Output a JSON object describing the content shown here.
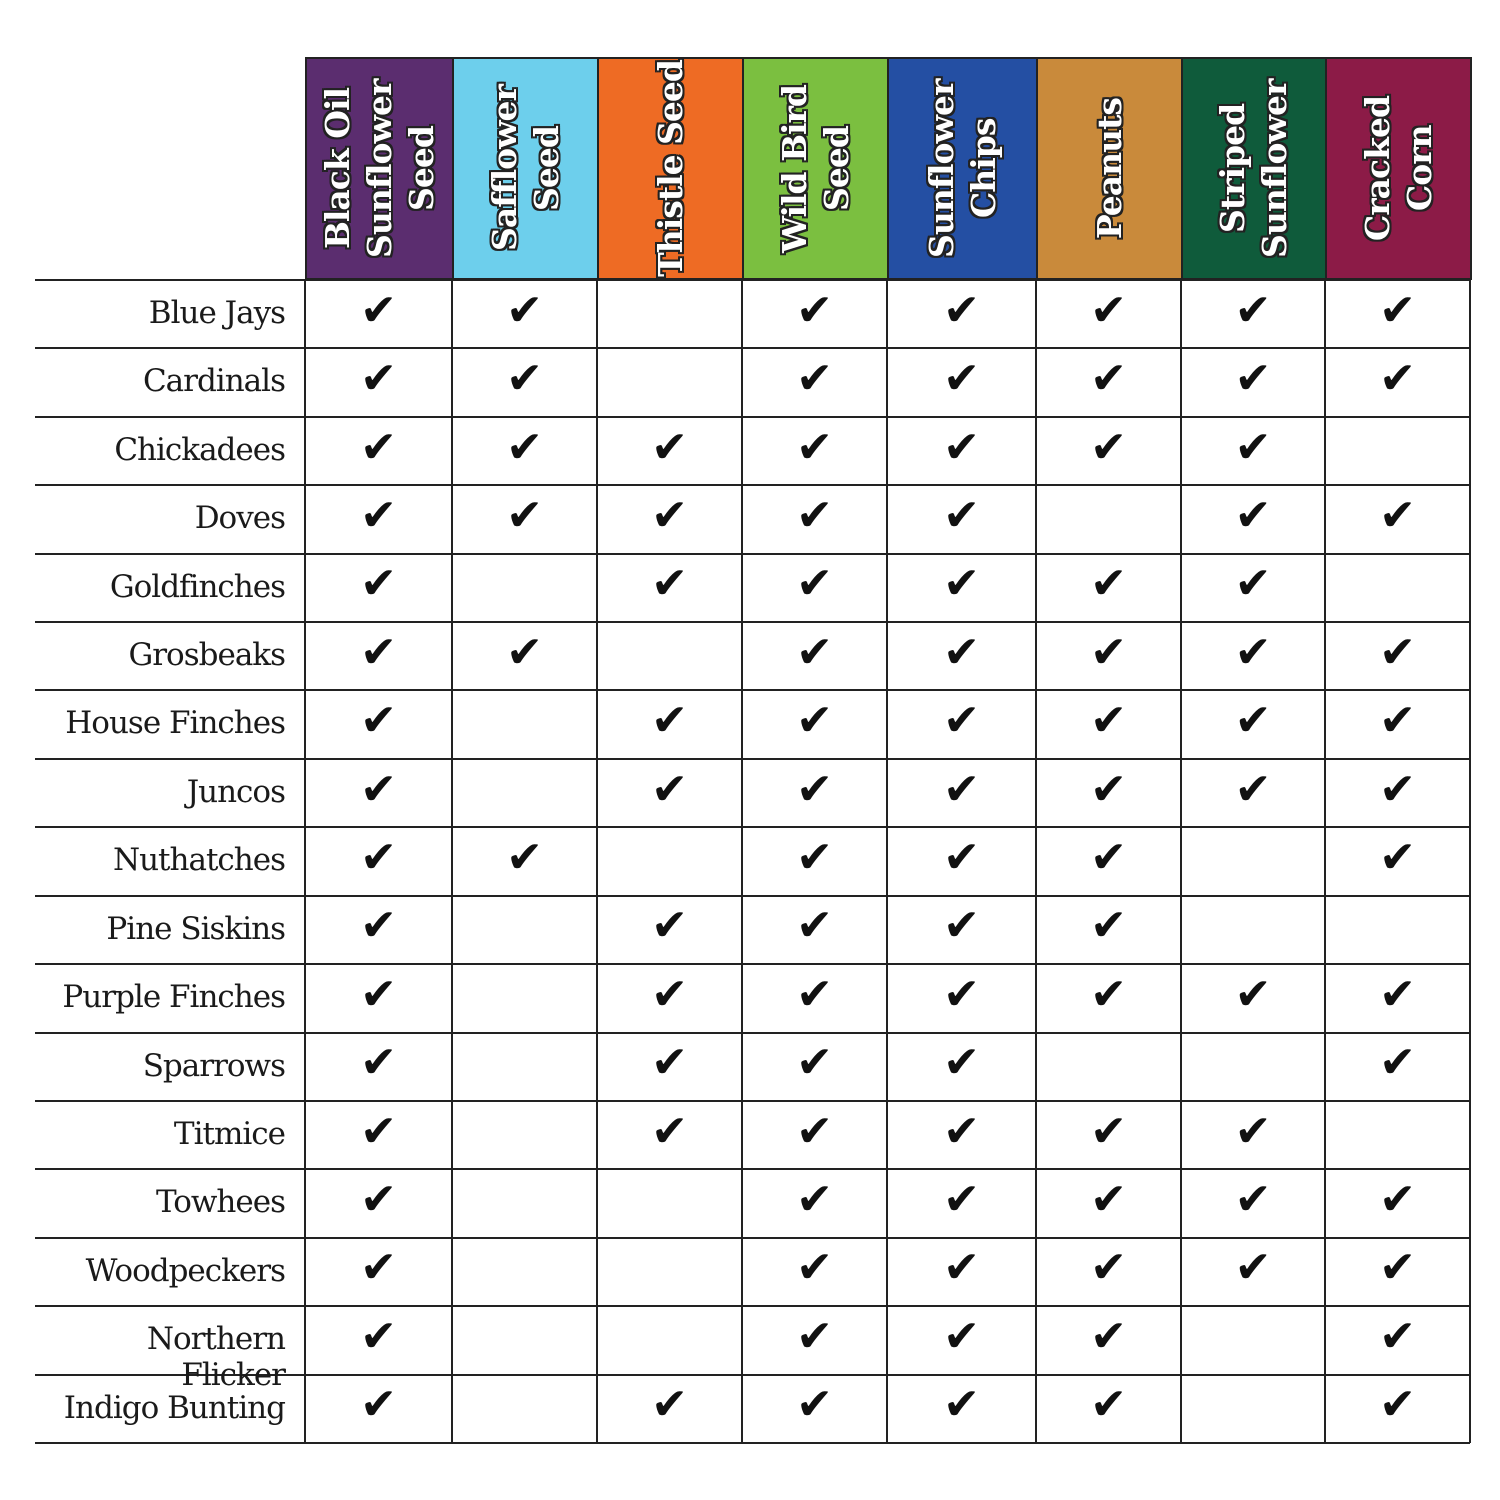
{
  "chart_data": {
    "type": "table",
    "columns": [
      {
        "label": "Black Oil Sunflower Seed",
        "color": "#5b2d6f"
      },
      {
        "label": "Safflower Seed",
        "color": "#6dcfec"
      },
      {
        "label": "Thistle Seed",
        "color": "#ee6b24"
      },
      {
        "label": "Wild Bird Seed",
        "color": "#7bbf40"
      },
      {
        "label": "Sunflower Chips",
        "color": "#244fa3"
      },
      {
        "label": "Peanuts",
        "color": "#c98a3b"
      },
      {
        "label": "Striped Sunflower",
        "color": "#0f5b3b"
      },
      {
        "label": "Cracked Corn",
        "color": "#8c1b47"
      }
    ],
    "check_symbol": "✔",
    "rows": [
      {
        "label": "Blue Jays",
        "values": [
          1,
          1,
          0,
          1,
          1,
          1,
          1,
          1
        ]
      },
      {
        "label": "Cardinals",
        "values": [
          1,
          1,
          0,
          1,
          1,
          1,
          1,
          1
        ]
      },
      {
        "label": "Chickadees",
        "values": [
          1,
          1,
          1,
          1,
          1,
          1,
          1,
          0
        ]
      },
      {
        "label": "Doves",
        "values": [
          1,
          1,
          1,
          1,
          1,
          0,
          1,
          1
        ]
      },
      {
        "label": "Goldfinches",
        "values": [
          1,
          0,
          1,
          1,
          1,
          1,
          1,
          0
        ]
      },
      {
        "label": "Grosbeaks",
        "values": [
          1,
          1,
          0,
          1,
          1,
          1,
          1,
          1
        ]
      },
      {
        "label": "House Finches",
        "values": [
          1,
          0,
          1,
          1,
          1,
          1,
          1,
          1
        ]
      },
      {
        "label": "Juncos",
        "values": [
          1,
          0,
          1,
          1,
          1,
          1,
          1,
          1
        ]
      },
      {
        "label": "Nuthatches",
        "values": [
          1,
          1,
          0,
          1,
          1,
          1,
          0,
          1
        ]
      },
      {
        "label": "Pine Siskins",
        "values": [
          1,
          0,
          1,
          1,
          1,
          1,
          0,
          0
        ]
      },
      {
        "label": "Purple Finches",
        "values": [
          1,
          0,
          1,
          1,
          1,
          1,
          1,
          1
        ]
      },
      {
        "label": "Sparrows",
        "values": [
          1,
          0,
          1,
          1,
          1,
          0,
          0,
          1
        ]
      },
      {
        "label": "Titmice",
        "values": [
          1,
          0,
          1,
          1,
          1,
          1,
          1,
          0
        ]
      },
      {
        "label": "Towhees",
        "values": [
          1,
          0,
          0,
          1,
          1,
          1,
          1,
          1
        ]
      },
      {
        "label": "Woodpeckers",
        "values": [
          1,
          0,
          0,
          1,
          1,
          1,
          1,
          1
        ]
      },
      {
        "label": "Northern Flicker",
        "values": [
          1,
          0,
          0,
          1,
          1,
          1,
          0,
          1
        ]
      },
      {
        "label": "Indigo Bunting",
        "values": [
          1,
          0,
          1,
          1,
          1,
          1,
          0,
          1
        ]
      }
    ]
  }
}
